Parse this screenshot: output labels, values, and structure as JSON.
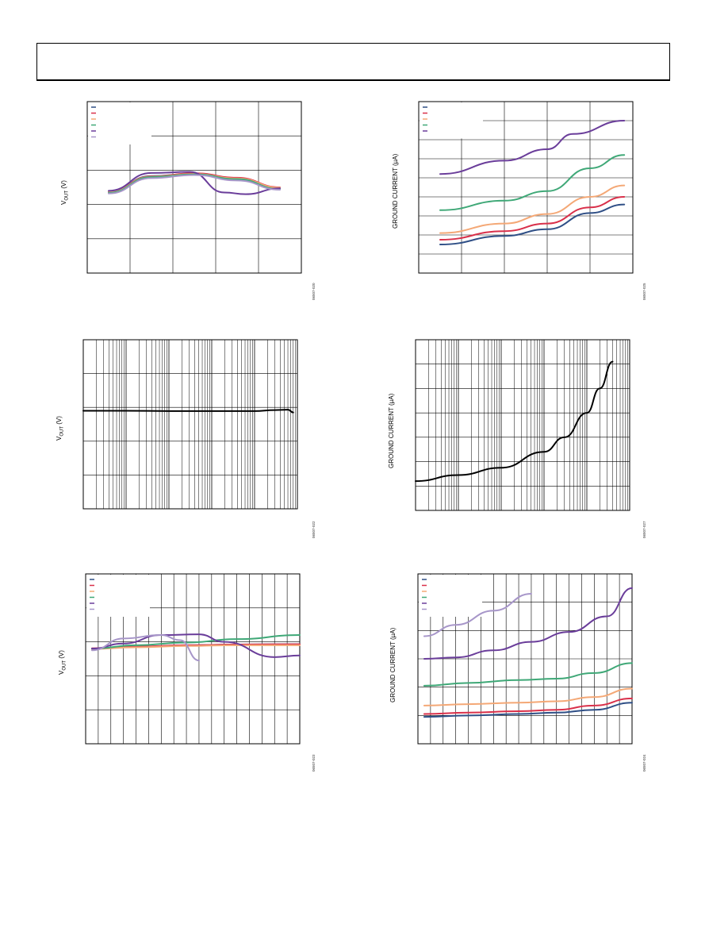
{
  "page": {
    "header": ""
  },
  "charts": [
    {
      "id": "c1",
      "ylabel_main": "V",
      "ylabel_sub": "OUT",
      "ylabel_tail": " (V)",
      "code": "06507-020"
    },
    {
      "id": "c2",
      "ylabel_main": "GROUND CURRENT (µA)",
      "ylabel_sub": "",
      "ylabel_tail": "",
      "code": "06507-025"
    },
    {
      "id": "c3",
      "ylabel_main": "V",
      "ylabel_sub": "OUT",
      "ylabel_tail": " (V)",
      "code": "06507-022"
    },
    {
      "id": "c4",
      "ylabel_main": "GROUND CURRENT (µA)",
      "ylabel_sub": "",
      "ylabel_tail": "",
      "code": "06507-027"
    },
    {
      "id": "c5",
      "ylabel_main": "V",
      "ylabel_sub": "OUT",
      "ylabel_tail": " (V)",
      "code": "06507-023"
    },
    {
      "id": "c6",
      "ylabel_main": "GROUND CURRENT (µA)",
      "ylabel_sub": "",
      "ylabel_tail": "",
      "code": "06507-024"
    }
  ],
  "colors": {
    "navy": "#2f4f86",
    "red": "#d9304a",
    "orange": "#f4a876",
    "green": "#3fa877",
    "purple": "#6a3d9a",
    "lavender": "#a796c9",
    "black": "#000000"
  },
  "chart_data": [
    {
      "type": "line",
      "xscale": "linear",
      "grid": true,
      "legend": "top-left",
      "xlim": [
        0,
        5
      ],
      "ylim": [
        0,
        5
      ],
      "series": [
        {
          "color": "#2f4f86",
          "x": [
            0.5,
            1.5,
            2.5,
            3.5,
            4.5
          ],
          "y": [
            2.38,
            2.83,
            2.9,
            2.77,
            2.48
          ]
        },
        {
          "color": "#d9304a",
          "x": [
            0.5,
            1.5,
            2.5,
            3.5,
            4.5
          ],
          "y": [
            2.37,
            2.82,
            2.91,
            2.78,
            2.5
          ]
        },
        {
          "color": "#f4a876",
          "x": [
            0.5,
            1.5,
            2.5,
            3.5,
            4.5
          ],
          "y": [
            2.36,
            2.81,
            2.89,
            2.76,
            2.49
          ]
        },
        {
          "color": "#3fa877",
          "x": [
            0.5,
            1.5,
            2.5,
            3.5,
            4.5
          ],
          "y": [
            2.34,
            2.8,
            2.88,
            2.74,
            2.45
          ]
        },
        {
          "color": "#6a3d9a",
          "x": [
            0.5,
            1.5,
            2.4,
            3.2,
            3.7,
            4.5
          ],
          "y": [
            2.4,
            2.92,
            2.95,
            2.35,
            2.3,
            2.47
          ]
        },
        {
          "color": "#a796c9",
          "x": [
            0.5,
            1.5,
            2.5,
            3.5,
            4.5
          ],
          "y": [
            2.32,
            2.77,
            2.86,
            2.7,
            2.43
          ]
        }
      ]
    },
    {
      "type": "line",
      "xscale": "linear",
      "grid": true,
      "legend": "top-left",
      "xlim": [
        0,
        5
      ],
      "ylim": [
        0,
        9
      ],
      "series": [
        {
          "color": "#2f4f86",
          "x": [
            0.5,
            2,
            3,
            4,
            4.8
          ],
          "y": [
            1.5,
            1.95,
            2.3,
            3.15,
            3.6
          ]
        },
        {
          "color": "#d9304a",
          "x": [
            0.5,
            2,
            3,
            4,
            4.8
          ],
          "y": [
            1.75,
            2.2,
            2.6,
            3.45,
            4.0
          ]
        },
        {
          "color": "#f4a876",
          "x": [
            0.5,
            2,
            3,
            4,
            4.8
          ],
          "y": [
            2.1,
            2.6,
            3.1,
            4.0,
            4.6
          ]
        },
        {
          "color": "#3fa877",
          "x": [
            0.5,
            2,
            3,
            4,
            4.8
          ],
          "y": [
            3.3,
            3.8,
            4.3,
            5.5,
            6.2
          ]
        },
        {
          "color": "#6a3d9a",
          "x": [
            0.5,
            2,
            3,
            3.6,
            4.8
          ],
          "y": [
            5.2,
            5.9,
            6.5,
            7.3,
            8.0
          ]
        }
      ]
    },
    {
      "type": "line",
      "xscale": "log",
      "grid": true,
      "xlim": [
        1,
        100000
      ],
      "ylim": [
        0,
        5
      ],
      "series": [
        {
          "color": "#000000",
          "x": [
            1,
            10,
            100,
            1000,
            10000,
            30000,
            60000,
            80000
          ],
          "y": [
            2.9,
            2.9,
            2.89,
            2.89,
            2.89,
            2.92,
            2.93,
            2.85
          ]
        }
      ]
    },
    {
      "type": "line",
      "xscale": "log",
      "grid": true,
      "xlim": [
        1,
        100000
      ],
      "ylim": [
        0,
        7
      ],
      "series": [
        {
          "color": "#000000",
          "x": [
            1,
            10,
            100,
            1000,
            3000,
            10000,
            20000,
            40000
          ],
          "y": [
            1.2,
            1.45,
            1.75,
            2.4,
            3.0,
            4.0,
            5.0,
            6.1
          ]
        }
      ]
    },
    {
      "type": "line",
      "xscale": "linear",
      "grid": true,
      "legend": "top-left",
      "xlim": [
        0,
        17
      ],
      "ylim": [
        0,
        5
      ],
      "series": [
        {
          "color": "#2f4f86",
          "x": [
            0.5,
            4,
            8,
            12,
            17
          ],
          "y": [
            2.8,
            2.85,
            2.9,
            2.92,
            2.93
          ]
        },
        {
          "color": "#d9304a",
          "x": [
            0.5,
            4,
            8,
            12,
            17
          ],
          "y": [
            2.81,
            2.86,
            2.9,
            2.92,
            2.93
          ]
        },
        {
          "color": "#f4a876",
          "x": [
            0.5,
            4,
            8,
            12,
            17
          ],
          "y": [
            2.79,
            2.84,
            2.88,
            2.9,
            2.9
          ]
        },
        {
          "color": "#3fa877",
          "x": [
            0.5,
            4,
            8,
            12,
            17
          ],
          "y": [
            2.8,
            2.9,
            2.98,
            3.08,
            3.2
          ]
        },
        {
          "color": "#6a3d9a",
          "x": [
            0.5,
            3,
            6,
            9,
            11,
            15,
            17
          ],
          "y": [
            2.8,
            2.95,
            3.2,
            3.22,
            3.0,
            2.55,
            2.6
          ]
        },
        {
          "color": "#a796c9",
          "x": [
            0.5,
            3,
            6,
            7.5,
            9
          ],
          "y": [
            2.75,
            3.1,
            3.2,
            3.05,
            2.45
          ]
        }
      ]
    },
    {
      "type": "line",
      "xscale": "linear",
      "grid": true,
      "legend": "top-left",
      "xlim": [
        0,
        17
      ],
      "ylim": [
        0,
        6
      ],
      "series": [
        {
          "color": "#2f4f86",
          "x": [
            0.5,
            4,
            8,
            11,
            14,
            17
          ],
          "y": [
            0.95,
            1.0,
            1.05,
            1.1,
            1.2,
            1.45
          ]
        },
        {
          "color": "#d9304a",
          "x": [
            0.5,
            4,
            8,
            11,
            14,
            17
          ],
          "y": [
            1.05,
            1.1,
            1.15,
            1.2,
            1.35,
            1.6
          ]
        },
        {
          "color": "#f4a876",
          "x": [
            0.5,
            4,
            8,
            11,
            14,
            17
          ],
          "y": [
            1.35,
            1.4,
            1.45,
            1.5,
            1.65,
            1.95
          ]
        },
        {
          "color": "#3fa877",
          "x": [
            0.5,
            4,
            8,
            11,
            14,
            17
          ],
          "y": [
            2.05,
            2.15,
            2.25,
            2.3,
            2.5,
            2.85
          ]
        },
        {
          "color": "#6a3d9a",
          "x": [
            0.5,
            3,
            6,
            9,
            12,
            15,
            17
          ],
          "y": [
            3.0,
            3.05,
            3.3,
            3.6,
            3.95,
            4.5,
            5.5
          ]
        },
        {
          "color": "#a796c9",
          "x": [
            0.5,
            3,
            6,
            9
          ],
          "y": [
            3.8,
            4.2,
            4.7,
            5.3
          ]
        }
      ]
    }
  ]
}
